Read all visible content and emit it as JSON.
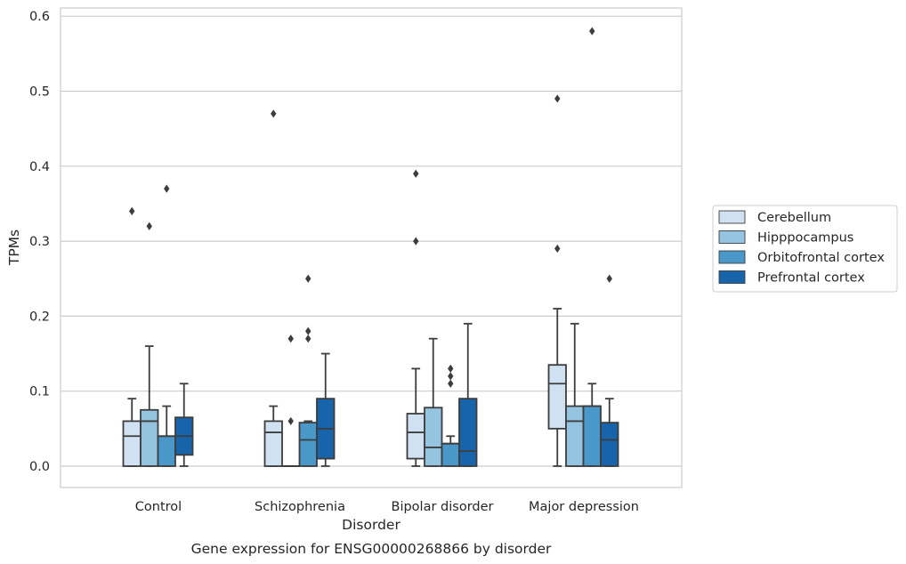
{
  "chart_data": {
    "type": "box",
    "xlabel": "Disorder",
    "ylabel": "TPMs",
    "caption": "Gene expression for ENSG00000268866 by disorder",
    "ylim": [
      -0.03,
      0.61
    ],
    "yticks": [
      0.0,
      0.1,
      0.2,
      0.3,
      0.4,
      0.5,
      0.6
    ],
    "ytick_labels": [
      "0.0",
      "0.1",
      "0.2",
      "0.3",
      "0.4",
      "0.5",
      "0.6"
    ],
    "grid": "horizontal",
    "legend_position": "right-center",
    "categories": [
      "Control",
      "Schizophrenia",
      "Bipolar disorder",
      "Major depression"
    ],
    "series": [
      {
        "name": "Cerebellum",
        "color": "#d0e1f2",
        "boxes": [
          {
            "whislo": 0.0,
            "q1": 0.0,
            "med": 0.04,
            "q3": 0.06,
            "whishi": 0.09,
            "fliers": [
              0.34
            ]
          },
          {
            "whislo": 0.0,
            "q1": 0.0,
            "med": 0.045,
            "q3": 0.06,
            "whishi": 0.08,
            "fliers": [
              0.47
            ]
          },
          {
            "whislo": 0.0,
            "q1": 0.01,
            "med": 0.045,
            "q3": 0.07,
            "whishi": 0.13,
            "fliers": [
              0.39,
              0.3
            ]
          },
          {
            "whislo": 0.0,
            "q1": 0.05,
            "med": 0.11,
            "q3": 0.135,
            "whishi": 0.21,
            "fliers": [
              0.49,
              0.29
            ]
          }
        ]
      },
      {
        "name": "Hipppocampus",
        "color": "#94c4df",
        "boxes": [
          {
            "whislo": 0.0,
            "q1": 0.0,
            "med": 0.06,
            "q3": 0.075,
            "whishi": 0.16,
            "fliers": [
              0.32
            ]
          },
          {
            "whislo": 0.0,
            "q1": 0.0,
            "med": 0.0,
            "q3": 0.0,
            "whishi": 0.0,
            "fliers": [
              0.17,
              0.06
            ]
          },
          {
            "whislo": 0.0,
            "q1": 0.0,
            "med": 0.025,
            "q3": 0.078,
            "whishi": 0.17,
            "fliers": []
          },
          {
            "whislo": 0.0,
            "q1": 0.0,
            "med": 0.06,
            "q3": 0.08,
            "whishi": 0.19,
            "fliers": []
          }
        ]
      },
      {
        "name": "Orbitofrontal cortex",
        "color": "#4a98c9",
        "boxes": [
          {
            "whislo": 0.0,
            "q1": 0.0,
            "med": 0.04,
            "q3": 0.04,
            "whishi": 0.08,
            "fliers": [
              0.37
            ]
          },
          {
            "whislo": 0.0,
            "q1": 0.0,
            "med": 0.035,
            "q3": 0.058,
            "whishi": 0.06,
            "fliers": [
              0.25,
              0.18,
              0.17
            ]
          },
          {
            "whislo": 0.0,
            "q1": 0.0,
            "med": 0.03,
            "q3": 0.03,
            "whishi": 0.04,
            "fliers": [
              0.13,
              0.12,
              0.11
            ]
          },
          {
            "whislo": 0.0,
            "q1": 0.0,
            "med": 0.08,
            "q3": 0.08,
            "whishi": 0.11,
            "fliers": [
              0.58
            ]
          }
        ]
      },
      {
        "name": "Prefrontal cortex",
        "color": "#1764ab",
        "boxes": [
          {
            "whislo": 0.0,
            "q1": 0.015,
            "med": 0.04,
            "q3": 0.065,
            "whishi": 0.11,
            "fliers": []
          },
          {
            "whislo": 0.0,
            "q1": 0.01,
            "med": 0.05,
            "q3": 0.09,
            "whishi": 0.15,
            "fliers": []
          },
          {
            "whislo": 0.0,
            "q1": 0.0,
            "med": 0.02,
            "q3": 0.09,
            "whishi": 0.19,
            "fliers": []
          },
          {
            "whislo": 0.0,
            "q1": 0.0,
            "med": 0.035,
            "q3": 0.058,
            "whishi": 0.09,
            "fliers": [
              0.25
            ]
          }
        ]
      }
    ]
  }
}
